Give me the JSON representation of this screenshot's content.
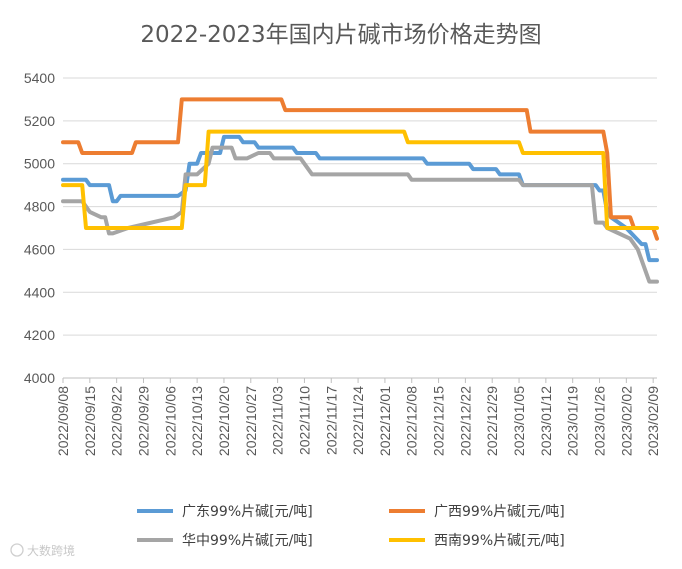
{
  "watermark": "大数跨境",
  "chart_data": {
    "type": "line",
    "title": "2022-2023年国内片碱市场价格走势图",
    "xlabel": "",
    "ylabel": "",
    "ylim": [
      4000,
      5400
    ],
    "yticks": [
      4000,
      4200,
      4400,
      4600,
      4800,
      5000,
      5200,
      5400
    ],
    "x_start": "2022-09-08",
    "x_end": "2023-02-10",
    "x_tick_labels": [
      "2022/09/08",
      "2022/09/15",
      "2022/09/22",
      "2022/09/29",
      "2022/10/06",
      "2022/10/13",
      "2022/10/20",
      "2022/10/27",
      "2022/11/03",
      "2022/11/10",
      "2022/11/17",
      "2022/11/24",
      "2022/12/01",
      "2022/12/08",
      "2022/12/15",
      "2022/12/22",
      "2022/12/29",
      "2023/01/05",
      "2023/01/12",
      "2023/01/19",
      "2023/01/26",
      "2023/02/02",
      "2023/02/09"
    ],
    "grid": "horizontal",
    "legend_position": "bottom",
    "series": [
      {
        "name": "广东99%片碱[元/吨]",
        "color": "#5B9BD5",
        "points": [
          [
            "2022-09-08",
            4925
          ],
          [
            "2022-09-14",
            4925
          ],
          [
            "2022-09-15",
            4900
          ],
          [
            "2022-09-20",
            4900
          ],
          [
            "2022-09-21",
            4825
          ],
          [
            "2022-09-22",
            4825
          ],
          [
            "2022-09-23",
            4850
          ],
          [
            "2022-10-08",
            4850
          ],
          [
            "2022-10-10",
            4875
          ],
          [
            "2022-10-11",
            5000
          ],
          [
            "2022-10-13",
            5000
          ],
          [
            "2022-10-14",
            5050
          ],
          [
            "2022-10-19",
            5050
          ],
          [
            "2022-10-20",
            5125
          ],
          [
            "2022-10-24",
            5125
          ],
          [
            "2022-10-25",
            5100
          ],
          [
            "2022-10-28",
            5100
          ],
          [
            "2022-10-29",
            5075
          ],
          [
            "2022-11-07",
            5075
          ],
          [
            "2022-11-08",
            5050
          ],
          [
            "2022-11-13",
            5050
          ],
          [
            "2022-11-14",
            5025
          ],
          [
            "2022-12-11",
            5025
          ],
          [
            "2022-12-12",
            5000
          ],
          [
            "2022-12-23",
            5000
          ],
          [
            "2022-12-24",
            4975
          ],
          [
            "2022-12-30",
            4975
          ],
          [
            "2022-12-31",
            4950
          ],
          [
            "2023-01-05",
            4950
          ],
          [
            "2023-01-06",
            4900
          ],
          [
            "2023-01-25",
            4900
          ],
          [
            "2023-01-26",
            4875
          ],
          [
            "2023-01-27",
            4875
          ],
          [
            "2023-01-28",
            4775
          ],
          [
            "2023-01-29",
            4750
          ],
          [
            "2023-02-02",
            4700
          ],
          [
            "2023-02-06",
            4625
          ],
          [
            "2023-02-07",
            4625
          ],
          [
            "2023-02-08",
            4550
          ],
          [
            "2023-02-10",
            4550
          ]
        ]
      },
      {
        "name": "广西99%片碱[元/吨]",
        "color": "#ED7D31",
        "points": [
          [
            "2022-09-08",
            5100
          ],
          [
            "2022-09-12",
            5100
          ],
          [
            "2022-09-13",
            5050
          ],
          [
            "2022-09-26",
            5050
          ],
          [
            "2022-09-27",
            5100
          ],
          [
            "2022-10-08",
            5100
          ],
          [
            "2022-10-09",
            5300
          ],
          [
            "2022-11-04",
            5300
          ],
          [
            "2022-11-05",
            5250
          ],
          [
            "2023-01-07",
            5250
          ],
          [
            "2023-01-08",
            5150
          ],
          [
            "2023-01-27",
            5150
          ],
          [
            "2023-01-28",
            5050
          ],
          [
            "2023-01-29",
            4750
          ],
          [
            "2023-02-03",
            4750
          ],
          [
            "2023-02-04",
            4700
          ],
          [
            "2023-02-09",
            4700
          ],
          [
            "2023-02-10",
            4650
          ]
        ]
      },
      {
        "name": "华中99%片碱[元/吨]",
        "color": "#A5A5A5",
        "points": [
          [
            "2022-09-08",
            4825
          ],
          [
            "2022-09-13",
            4825
          ],
          [
            "2022-09-15",
            4775
          ],
          [
            "2022-09-18",
            4750
          ],
          [
            "2022-09-19",
            4750
          ],
          [
            "2022-09-20",
            4675
          ],
          [
            "2022-09-21",
            4675
          ],
          [
            "2022-09-25",
            4700
          ],
          [
            "2022-10-07",
            4750
          ],
          [
            "2022-10-09",
            4775
          ],
          [
            "2022-10-10",
            4950
          ],
          [
            "2022-10-13",
            4950
          ],
          [
            "2022-10-16",
            5000
          ],
          [
            "2022-10-17",
            5075
          ],
          [
            "2022-10-22",
            5075
          ],
          [
            "2022-10-23",
            5025
          ],
          [
            "2022-10-26",
            5025
          ],
          [
            "2022-10-29",
            5050
          ],
          [
            "2022-11-01",
            5050
          ],
          [
            "2022-11-02",
            5025
          ],
          [
            "2022-11-09",
            5025
          ],
          [
            "2022-11-12",
            4950
          ],
          [
            "2022-12-07",
            4950
          ],
          [
            "2022-12-08",
            4925
          ],
          [
            "2023-01-05",
            4925
          ],
          [
            "2023-01-06",
            4900
          ],
          [
            "2023-01-24",
            4900
          ],
          [
            "2023-01-25",
            4725
          ],
          [
            "2023-01-27",
            4725
          ],
          [
            "2023-01-28",
            4700
          ],
          [
            "2023-02-03",
            4650
          ],
          [
            "2023-02-05",
            4600
          ],
          [
            "2023-02-08",
            4450
          ],
          [
            "2023-02-10",
            4450
          ]
        ]
      },
      {
        "name": "西南99%片碱[元/吨]",
        "color": "#FFC000",
        "points": [
          [
            "2022-09-08",
            4900
          ],
          [
            "2022-09-13",
            4900
          ],
          [
            "2022-09-14",
            4700
          ],
          [
            "2022-10-09",
            4700
          ],
          [
            "2022-10-10",
            4900
          ],
          [
            "2022-10-15",
            4900
          ],
          [
            "2022-10-16",
            5150
          ],
          [
            "2022-12-06",
            5150
          ],
          [
            "2022-12-07",
            5100
          ],
          [
            "2023-01-05",
            5100
          ],
          [
            "2023-01-06",
            5050
          ],
          [
            "2023-01-27",
            5050
          ],
          [
            "2023-01-28",
            4700
          ],
          [
            "2023-02-10",
            4700
          ]
        ]
      }
    ]
  }
}
